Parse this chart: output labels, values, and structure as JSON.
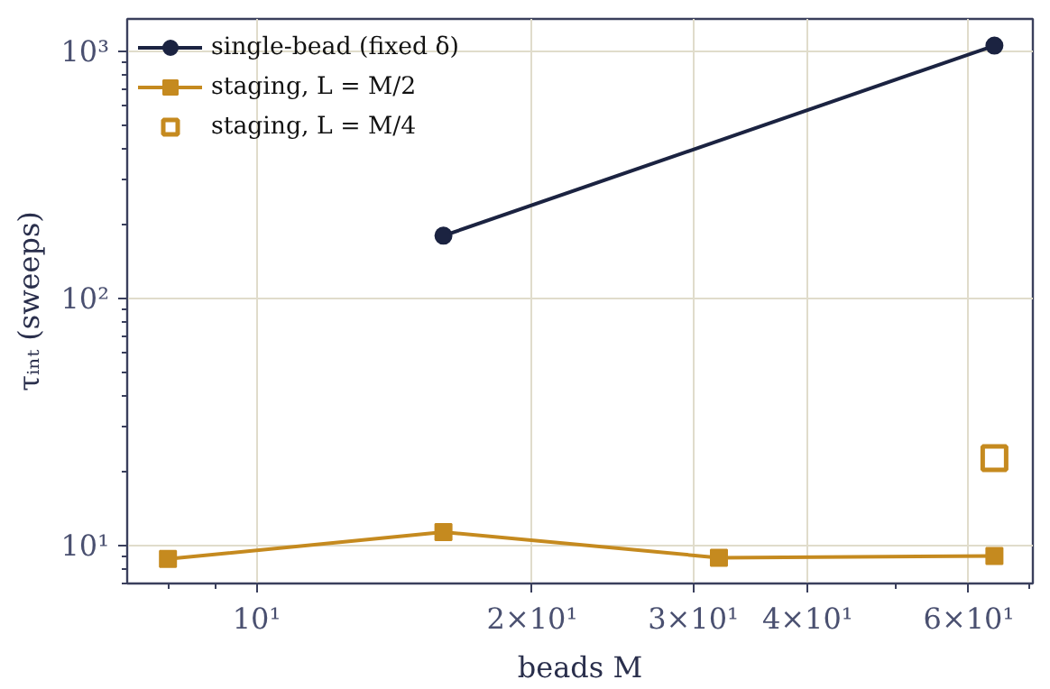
{
  "chart_data": {
    "type": "line",
    "xlabel": "beads M",
    "ylabel": "τᵢₙₜ (sweeps)",
    "log": "xy",
    "grid": true,
    "legend": "top left",
    "xlim": [
      7.22,
      70.5
    ],
    "ylim": [
      7.0,
      1350
    ],
    "xticks": [
      {
        "value": 10,
        "label": "10¹"
      },
      {
        "value": 20,
        "label": "2×10¹"
      },
      {
        "value": 30,
        "label": "3×10¹"
      },
      {
        "value": 40,
        "label": "4×10¹"
      },
      {
        "value": 60,
        "label": "6×10¹"
      }
    ],
    "yticks": [
      {
        "value": 10,
        "label": "10¹"
      },
      {
        "value": 100,
        "label": "10²"
      },
      {
        "value": 1000,
        "label": "10³"
      }
    ],
    "series": [
      {
        "name": "single-bead (fixed δ)",
        "color": "#1b2341",
        "marker": "circle",
        "x": [
          16,
          64
        ],
        "values": [
          179,
          1053
        ]
      },
      {
        "name": "staging, L = M/2",
        "color": "#c58a1f",
        "marker": "square",
        "x": [
          8,
          16,
          32,
          64
        ],
        "values": [
          8.8,
          11.3,
          8.9,
          9.05
        ]
      },
      {
        "name": "staging, L = M/4",
        "type": "scatter",
        "color": "#c58a1f",
        "marker": "square",
        "x": [
          64
        ],
        "values": [
          22.5
        ]
      }
    ]
  }
}
